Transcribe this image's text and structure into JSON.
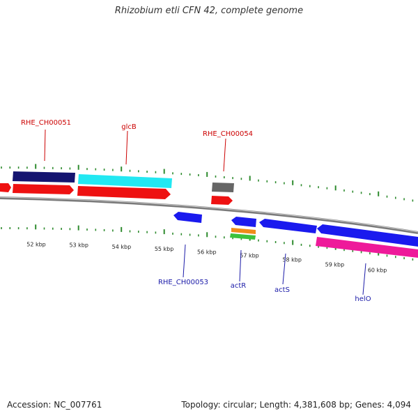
{
  "header": {
    "title": "Rhizobium etli CFN 42, complete genome"
  },
  "footer": {
    "accession": "Accession: NC_007761",
    "topology": "Topology: circular;",
    "length": "Length: 4,381,608 bp;",
    "genes": "Genes: 4,094"
  },
  "colors": {
    "backbone": "#8c8c8c",
    "tick": "#2e8b2e",
    "label_top": "#cc0000",
    "label_bottom": "#1a1aa8",
    "red_feature": "#ee1111",
    "blue_feature": "#1a1aee",
    "navy_feature": "#141470",
    "cyan_feature": "#22e8f2",
    "gray_feature": "#666666",
    "pink_feature": "#ee1a9a",
    "orange_feature": "#ee8c1a",
    "green_feature": "#3cc23c"
  },
  "scale": {
    "unit": "kbp",
    "tick_labels": [
      "52 kbp",
      "53 kbp",
      "54 kbp",
      "55 kbp",
      "56 kbp",
      "57 kbp",
      "58 kbp",
      "59 kbp",
      "60 kbp"
    ]
  },
  "gene_labels_top": [
    "RHE_CH00051",
    "glcB",
    "RHE_CH00054"
  ],
  "gene_labels_bottom": [
    "RHE_CH00053",
    "actR",
    "actS",
    "helO"
  ]
}
